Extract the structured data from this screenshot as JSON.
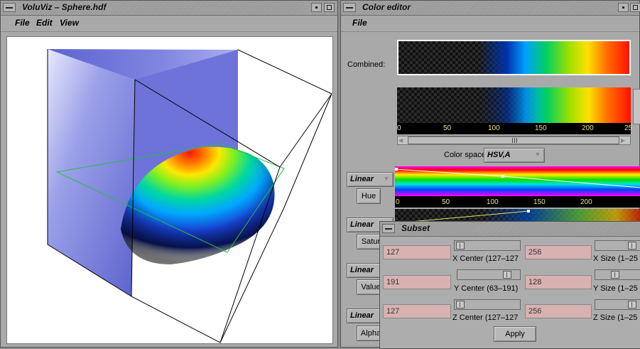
{
  "volumeWindow": {
    "title": "VoluViz – Sphere.hdf",
    "menu": [
      "File",
      "Edit",
      "View"
    ]
  },
  "colorEditor": {
    "title": "Color editor",
    "menu": [
      "File"
    ],
    "combined_label": "Combined:",
    "axis_ticks": [
      "0",
      "50",
      "100",
      "150",
      "200",
      "25"
    ],
    "color_space_label": "Color space:",
    "color_space_value": "HSV,A",
    "channels": [
      {
        "mode": "Linear",
        "button": "Hue"
      },
      {
        "mode": "Linear",
        "button": "Satur"
      },
      {
        "mode": "Linear",
        "button": "Value"
      },
      {
        "mode": "Linear",
        "button": "Alpha"
      }
    ]
  },
  "subset": {
    "title": "Subset",
    "rows": [
      {
        "center_value": "127",
        "center_label": "X Center (127–127",
        "size_value": "256",
        "size_label": "X Size (1–25"
      },
      {
        "center_value": "191",
        "center_label": "Y Center (63–191)",
        "size_value": "128",
        "size_label": "Y Size (1–25"
      },
      {
        "center_value": "127",
        "center_label": "Z Center (127–127",
        "size_value": "256",
        "size_label": "Z Size (1–25"
      }
    ],
    "apply_label": "Apply"
  },
  "colors": {
    "window_bg": "#a9a9a9",
    "field_bg": "#d8b1b1",
    "box_face": "#6a6fd6"
  }
}
